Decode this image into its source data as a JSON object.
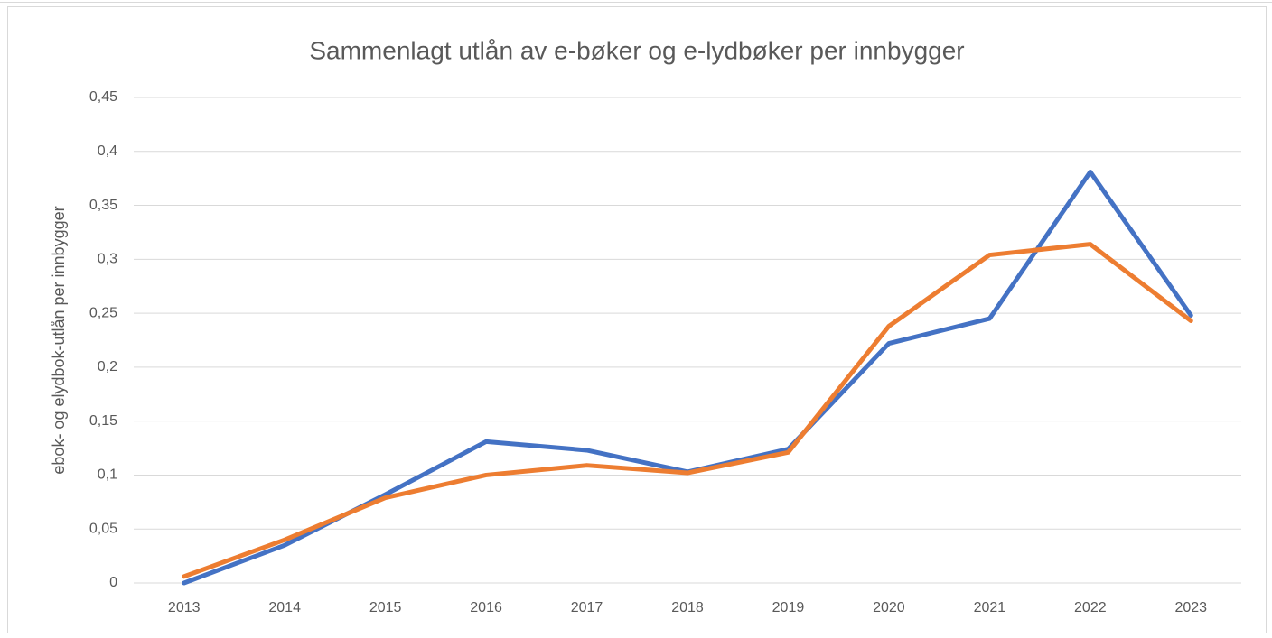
{
  "chart_data": {
    "type": "line",
    "title": "Sammenlagt utlån av e-bøker og e-lydbøker per innbygger",
    "y_label": "ebok- og elydbok-utlån per innbygger",
    "categories": [
      "2013",
      "2014",
      "2015",
      "2016",
      "2017",
      "2018",
      "2019",
      "2020",
      "2021",
      "2022",
      "2023"
    ],
    "series": [
      {
        "color": "#4472c4",
        "values": [
          0.0,
          0.035,
          0.082,
          0.131,
          0.123,
          0.103,
          0.124,
          0.222,
          0.245,
          0.381,
          0.248
        ]
      },
      {
        "color": "#ed7d31",
        "values": [
          0.006,
          0.04,
          0.079,
          0.1,
          0.109,
          0.102,
          0.121,
          0.238,
          0.304,
          0.314,
          0.243
        ]
      }
    ],
    "ylim": [
      0,
      0.45
    ],
    "yticks": [
      0,
      {
        "value": 0.05,
        "label": "0,05"
      },
      {
        "value": 0.1,
        "label": "0,1"
      },
      {
        "value": 0.15,
        "label": "0,15"
      },
      {
        "value": 0.2,
        "label": "0,2"
      },
      {
        "value": 0.25,
        "label": "0,25"
      },
      {
        "value": 0.3,
        "label": "0,3"
      },
      {
        "value": 0.35,
        "label": "0,35"
      },
      {
        "value": 0.4,
        "label": "0,4"
      },
      {
        "value": 0.45,
        "label": "0,45"
      }
    ],
    "grid": true
  }
}
